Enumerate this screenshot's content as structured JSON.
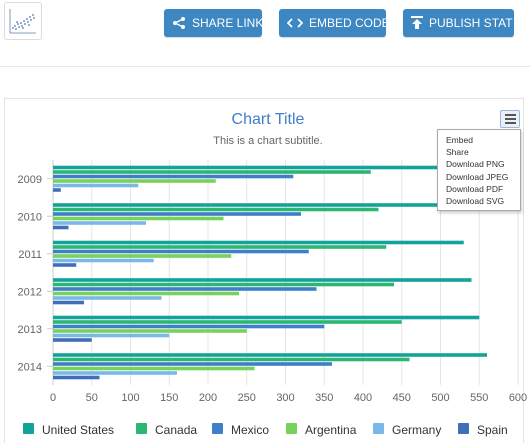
{
  "toolbar": {
    "share_label": "SHARE LINK",
    "embed_label": "EMBED CODE",
    "publish_label": "PUBLISH STAT",
    "icons": [
      "share-icon",
      "code-icon",
      "upload-icon"
    ],
    "button_color": "#3d87c3"
  },
  "menu": {
    "items": [
      "Embed",
      "Share",
      "Download PNG",
      "Download JPEG",
      "Download PDF",
      "Download SVG"
    ]
  },
  "chart_data": {
    "type": "bar",
    "orientation": "horizontal",
    "title": "Chart Title",
    "subtitle": "This is a chart subtitle.",
    "categories": [
      "2009",
      "2010",
      "2011",
      "2012",
      "2013",
      "2014"
    ],
    "xlim": [
      0,
      600
    ],
    "xticks": [
      "0",
      "50",
      "100",
      "150",
      "200",
      "250",
      "300",
      "350",
      "400",
      "450",
      "500",
      "550",
      "600"
    ],
    "grid": "vertical",
    "legend_position": "bottom",
    "series": [
      {
        "name": "United States",
        "color": "#14a39a",
        "values": [
          540,
          535,
          530,
          540,
          550,
          560
        ]
      },
      {
        "name": "Canada",
        "color": "#2bb673",
        "values": [
          410,
          420,
          430,
          440,
          450,
          460
        ]
      },
      {
        "name": "Mexico",
        "color": "#3d7fc9",
        "values": [
          310,
          320,
          330,
          340,
          350,
          360
        ]
      },
      {
        "name": "Argentina",
        "color": "#77d15a",
        "values": [
          210,
          220,
          230,
          240,
          250,
          260
        ]
      },
      {
        "name": "Germany",
        "color": "#7ab8ea",
        "values": [
          110,
          120,
          130,
          140,
          150,
          160
        ]
      },
      {
        "name": "Spain",
        "color": "#3f6fb8",
        "values": [
          10,
          20,
          30,
          40,
          50,
          60
        ]
      }
    ]
  }
}
